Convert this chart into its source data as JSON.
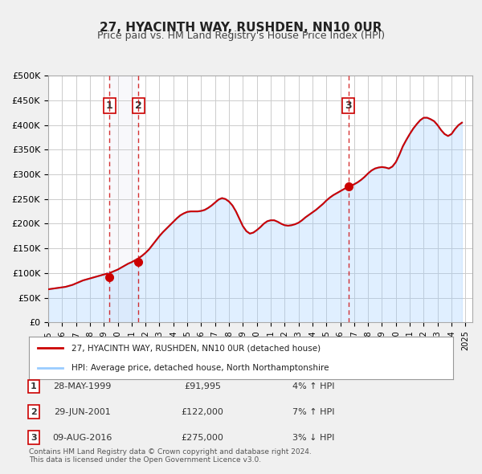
{
  "title": "27, HYACINTH WAY, RUSHDEN, NN10 0UR",
  "subtitle": "Price paid vs. HM Land Registry's House Price Index (HPI)",
  "background_color": "#f0f0f0",
  "plot_background": "#ffffff",
  "grid_color": "#cccccc",
  "ylabel": "",
  "xlabel": "",
  "ylim": [
    0,
    500000
  ],
  "yticks": [
    0,
    50000,
    100000,
    150000,
    200000,
    250000,
    300000,
    350000,
    400000,
    450000,
    500000
  ],
  "ytick_labels": [
    "£0",
    "£50K",
    "£100K",
    "£150K",
    "£200K",
    "£250K",
    "£300K",
    "£350K",
    "£400K",
    "£450K",
    "£500K"
  ],
  "xmin": 1995.0,
  "xmax": 2025.5,
  "xticks": [
    1995,
    1996,
    1997,
    1998,
    1999,
    2000,
    2001,
    2002,
    2003,
    2004,
    2005,
    2006,
    2007,
    2008,
    2009,
    2010,
    2011,
    2012,
    2013,
    2014,
    2015,
    2016,
    2017,
    2018,
    2019,
    2020,
    2021,
    2022,
    2023,
    2024,
    2025
  ],
  "sale_color": "#cc0000",
  "hpi_color": "#99ccff",
  "sale_label": "27, HYACINTH WAY, RUSHDEN, NN10 0UR (detached house)",
  "hpi_label": "HPI: Average price, detached house, North Northamptonshire",
  "sales": [
    {
      "date": 1999.41,
      "price": 91995,
      "label": "1"
    },
    {
      "date": 2001.49,
      "price": 122000,
      "label": "2"
    },
    {
      "date": 2016.6,
      "price": 275000,
      "label": "3"
    }
  ],
  "vlines": [
    {
      "x": 1999.41,
      "label": "1"
    },
    {
      "x": 2001.49,
      "label": "2"
    },
    {
      "x": 2016.6,
      "label": "3"
    }
  ],
  "table_rows": [
    {
      "num": "1",
      "date": "28-MAY-1999",
      "price": "£91,995",
      "hpi": "4% ↑ HPI"
    },
    {
      "num": "2",
      "date": "29-JUN-2001",
      "price": "£122,000",
      "hpi": "7% ↑ HPI"
    },
    {
      "num": "3",
      "date": "09-AUG-2016",
      "price": "£275,000",
      "hpi": "3% ↓ HPI"
    }
  ],
  "footer": "Contains HM Land Registry data © Crown copyright and database right 2024.\nThis data is licensed under the Open Government Licence v3.0.",
  "hpi_data_x": [
    1995.0,
    1995.25,
    1995.5,
    1995.75,
    1996.0,
    1996.25,
    1996.5,
    1996.75,
    1997.0,
    1997.25,
    1997.5,
    1997.75,
    1998.0,
    1998.25,
    1998.5,
    1998.75,
    1999.0,
    1999.25,
    1999.5,
    1999.75,
    2000.0,
    2000.25,
    2000.5,
    2000.75,
    2001.0,
    2001.25,
    2001.5,
    2001.75,
    2002.0,
    2002.25,
    2002.5,
    2002.75,
    2003.0,
    2003.25,
    2003.5,
    2003.75,
    2004.0,
    2004.25,
    2004.5,
    2004.75,
    2005.0,
    2005.25,
    2005.5,
    2005.75,
    2006.0,
    2006.25,
    2006.5,
    2006.75,
    2007.0,
    2007.25,
    2007.5,
    2007.75,
    2008.0,
    2008.25,
    2008.5,
    2008.75,
    2009.0,
    2009.25,
    2009.5,
    2009.75,
    2010.0,
    2010.25,
    2010.5,
    2010.75,
    2011.0,
    2011.25,
    2011.5,
    2011.75,
    2012.0,
    2012.25,
    2012.5,
    2012.75,
    2013.0,
    2013.25,
    2013.5,
    2013.75,
    2014.0,
    2014.25,
    2014.5,
    2014.75,
    2015.0,
    2015.25,
    2015.5,
    2015.75,
    2016.0,
    2016.25,
    2016.5,
    2016.75,
    2017.0,
    2017.25,
    2017.5,
    2017.75,
    2018.0,
    2018.25,
    2018.5,
    2018.75,
    2019.0,
    2019.25,
    2019.5,
    2019.75,
    2020.0,
    2020.25,
    2020.5,
    2020.75,
    2021.0,
    2021.25,
    2021.5,
    2021.75,
    2022.0,
    2022.25,
    2022.5,
    2022.75,
    2023.0,
    2023.25,
    2023.5,
    2023.75,
    2024.0,
    2024.25,
    2024.5,
    2024.75
  ],
  "hpi_data_y": [
    67000,
    68000,
    69000,
    70000,
    71000,
    72000,
    74000,
    76000,
    79000,
    82000,
    85000,
    87000,
    89000,
    91000,
    93000,
    95000,
    97000,
    99000,
    101000,
    104000,
    107000,
    111000,
    115000,
    119000,
    122000,
    126000,
    130000,
    135000,
    141000,
    148000,
    157000,
    166000,
    175000,
    183000,
    190000,
    197000,
    204000,
    211000,
    217000,
    221000,
    224000,
    225000,
    225000,
    225000,
    226000,
    228000,
    232000,
    237000,
    243000,
    249000,
    252000,
    250000,
    245000,
    237000,
    225000,
    210000,
    195000,
    185000,
    180000,
    182000,
    187000,
    193000,
    200000,
    205000,
    207000,
    207000,
    204000,
    200000,
    197000,
    196000,
    197000,
    199000,
    202000,
    207000,
    213000,
    218000,
    223000,
    228000,
    234000,
    240000,
    247000,
    253000,
    258000,
    262000,
    266000,
    270000,
    274000,
    277000,
    280000,
    284000,
    289000,
    295000,
    302000,
    308000,
    312000,
    314000,
    315000,
    314000,
    312000,
    316000,
    325000,
    340000,
    357000,
    370000,
    382000,
    393000,
    402000,
    410000,
    415000,
    415000,
    412000,
    408000,
    400000,
    390000,
    382000,
    378000,
    382000,
    392000,
    400000,
    405000
  ],
  "sale_line_x": [
    1995.0,
    1995.25,
    1995.5,
    1995.75,
    1996.0,
    1996.25,
    1996.5,
    1996.75,
    1997.0,
    1997.25,
    1997.5,
    1997.75,
    1998.0,
    1998.25,
    1998.5,
    1998.75,
    1999.0,
    1999.25,
    1999.41,
    1999.5,
    1999.75,
    2000.0,
    2000.25,
    2000.5,
    2000.75,
    2001.0,
    2001.25,
    2001.49,
    2001.5,
    2001.75,
    2002.0,
    2002.25,
    2002.5,
    2002.75,
    2003.0,
    2003.25,
    2003.5,
    2003.75,
    2004.0,
    2004.25,
    2004.5,
    2004.75,
    2005.0,
    2005.25,
    2005.5,
    2005.75,
    2006.0,
    2006.25,
    2006.5,
    2006.75,
    2007.0,
    2007.25,
    2007.5,
    2007.75,
    2008.0,
    2008.25,
    2008.5,
    2008.75,
    2009.0,
    2009.25,
    2009.5,
    2009.75,
    2010.0,
    2010.25,
    2010.5,
    2010.75,
    2011.0,
    2011.25,
    2011.5,
    2011.75,
    2012.0,
    2012.25,
    2012.5,
    2012.75,
    2013.0,
    2013.25,
    2013.5,
    2013.75,
    2014.0,
    2014.25,
    2014.5,
    2014.75,
    2015.0,
    2015.25,
    2015.5,
    2015.75,
    2016.0,
    2016.25,
    2016.5,
    2016.6,
    2016.75,
    2017.0,
    2017.25,
    2017.5,
    2017.75,
    2018.0,
    2018.25,
    2018.5,
    2018.75,
    2019.0,
    2019.25,
    2019.5,
    2019.75,
    2020.0,
    2020.25,
    2020.5,
    2020.75,
    2021.0,
    2021.25,
    2021.5,
    2021.75,
    2022.0,
    2022.25,
    2022.5,
    2022.75,
    2023.0,
    2023.25,
    2023.5,
    2023.75,
    2024.0,
    2024.25,
    2024.5,
    2024.75
  ],
  "sale_line_y": [
    67000,
    68000,
    69000,
    70000,
    71000,
    72000,
    74000,
    76000,
    79000,
    82000,
    85000,
    87000,
    89000,
    91000,
    93000,
    95000,
    97000,
    99000,
    91995,
    101000,
    104000,
    107000,
    111000,
    115000,
    119000,
    122000,
    126000,
    122000,
    130000,
    135000,
    141000,
    148000,
    157000,
    166000,
    175000,
    183000,
    190000,
    197000,
    204000,
    211000,
    217000,
    221000,
    224000,
    225000,
    225000,
    225000,
    226000,
    228000,
    232000,
    237000,
    243000,
    249000,
    252000,
    250000,
    245000,
    237000,
    225000,
    210000,
    195000,
    185000,
    180000,
    182000,
    187000,
    193000,
    200000,
    205000,
    207000,
    207000,
    204000,
    200000,
    197000,
    196000,
    197000,
    199000,
    202000,
    207000,
    213000,
    218000,
    223000,
    228000,
    234000,
    240000,
    247000,
    253000,
    258000,
    262000,
    266000,
    270000,
    274000,
    275000,
    277000,
    280000,
    284000,
    289000,
    295000,
    302000,
    308000,
    312000,
    314000,
    315000,
    314000,
    312000,
    316000,
    325000,
    340000,
    357000,
    370000,
    382000,
    393000,
    402000,
    410000,
    415000,
    415000,
    412000,
    408000,
    400000,
    390000,
    382000,
    378000,
    382000,
    392000,
    400000,
    405000
  ]
}
